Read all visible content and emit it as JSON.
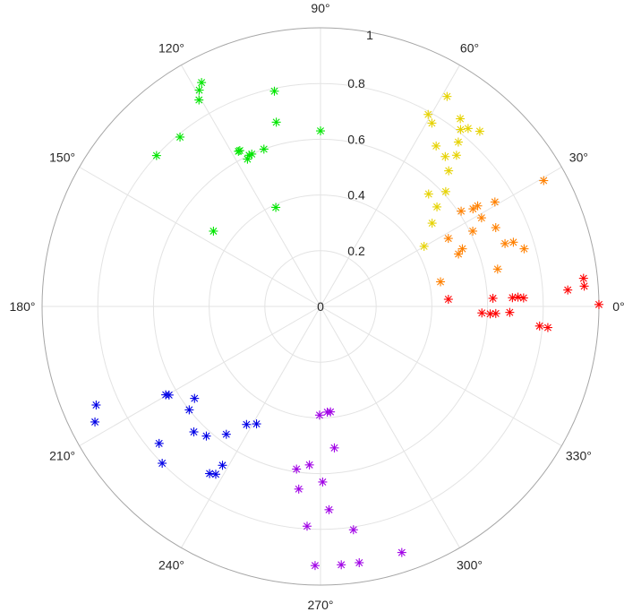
{
  "chart_data": {
    "type": "scatter",
    "coordinate_system": "polar",
    "title": "",
    "marker": "asterisk",
    "theta_unit": "degrees",
    "r_lim": [
      0,
      1
    ],
    "r_ticks": [
      0,
      0.2,
      0.4,
      0.6,
      0.8,
      1
    ],
    "r_tick_labels": [
      "0",
      "0.2",
      "0.4",
      "0.6",
      "0.8",
      "1"
    ],
    "theta_ticks": [
      0,
      30,
      60,
      90,
      120,
      150,
      180,
      210,
      240,
      270,
      300,
      330
    ],
    "theta_tick_labels": [
      "0°",
      "30°",
      "60°",
      "90°",
      "120°",
      "150°",
      "180°",
      "210°",
      "240°",
      "270°",
      "300°",
      "330°"
    ],
    "grid": true,
    "series": [
      {
        "color": "#ff0000",
        "points": [
          {
            "theta": 0.4,
            "r": 1.0
          },
          {
            "theta": 4.4,
            "r": 0.95
          },
          {
            "theta": 6.1,
            "r": 0.95
          },
          {
            "theta": 3.8,
            "r": 0.89
          },
          {
            "theta": -5.3,
            "r": 0.82
          },
          {
            "theta": -5.1,
            "r": 0.79
          },
          {
            "theta": 2.4,
            "r": 0.73
          },
          {
            "theta": 2.7,
            "r": 0.71
          },
          {
            "theta": 2.6,
            "r": 0.69
          },
          {
            "theta": -1.8,
            "r": 0.68
          },
          {
            "theta": 2.7,
            "r": 0.62
          },
          {
            "theta": -2.3,
            "r": 0.63
          },
          {
            "theta": -2.5,
            "r": 0.61
          },
          {
            "theta": -2.3,
            "r": 0.58
          },
          {
            "theta": 3.2,
            "r": 0.46
          }
        ]
      },
      {
        "color": "#ff8000",
        "points": [
          {
            "theta": 29.4,
            "r": 0.92
          },
          {
            "theta": 15.8,
            "r": 0.76
          },
          {
            "theta": 18.4,
            "r": 0.73
          },
          {
            "theta": 18.8,
            "r": 0.7
          },
          {
            "theta": 30.9,
            "r": 0.73
          },
          {
            "theta": 24.2,
            "r": 0.69
          },
          {
            "theta": 28.8,
            "r": 0.66
          },
          {
            "theta": 32.6,
            "r": 0.67
          },
          {
            "theta": 11.9,
            "r": 0.65
          },
          {
            "theta": 34.1,
            "r": 0.61
          },
          {
            "theta": 32.6,
            "r": 0.65
          },
          {
            "theta": 26.3,
            "r": 0.61
          },
          {
            "theta": 22.1,
            "r": 0.55
          },
          {
            "theta": 28.0,
            "r": 0.52
          },
          {
            "theta": 20.8,
            "r": 0.53
          },
          {
            "theta": 11.6,
            "r": 0.44
          }
        ]
      },
      {
        "color": "#e6d200",
        "points": [
          {
            "theta": 58.9,
            "r": 0.88
          },
          {
            "theta": 53.3,
            "r": 0.84
          },
          {
            "theta": 51.6,
            "r": 0.81
          },
          {
            "theta": 50.3,
            "r": 0.83
          },
          {
            "theta": 47.7,
            "r": 0.85
          },
          {
            "theta": 60.7,
            "r": 0.79
          },
          {
            "theta": 58.7,
            "r": 0.77
          },
          {
            "theta": 50.0,
            "r": 0.77
          },
          {
            "theta": 48.0,
            "r": 0.73
          },
          {
            "theta": 50.2,
            "r": 0.7
          },
          {
            "theta": 54.2,
            "r": 0.71
          },
          {
            "theta": 46.6,
            "r": 0.67
          },
          {
            "theta": 42.5,
            "r": 0.61
          },
          {
            "theta": 46.1,
            "r": 0.56
          },
          {
            "theta": 40.5,
            "r": 0.55
          },
          {
            "theta": 36.7,
            "r": 0.5
          },
          {
            "theta": 30.1,
            "r": 0.43
          }
        ]
      },
      {
        "color": "#00e600",
        "points": [
          {
            "theta": 90.0,
            "r": 0.63
          },
          {
            "theta": 102.1,
            "r": 0.79
          },
          {
            "theta": 103.5,
            "r": 0.68
          },
          {
            "theta": 109.8,
            "r": 0.6
          },
          {
            "theta": 114.3,
            "r": 0.6
          },
          {
            "theta": 115.3,
            "r": 0.6
          },
          {
            "theta": 116.4,
            "r": 0.59
          },
          {
            "theta": 117.4,
            "r": 0.63
          },
          {
            "theta": 117.9,
            "r": 0.63
          },
          {
            "theta": 118.0,
            "r": 0.91
          },
          {
            "theta": 119.3,
            "r": 0.89
          },
          {
            "theta": 120.5,
            "r": 0.86
          },
          {
            "theta": 129.7,
            "r": 0.79
          },
          {
            "theta": 137.4,
            "r": 0.8
          },
          {
            "theta": 114.3,
            "r": 0.39
          },
          {
            "theta": 144.9,
            "r": 0.47
          }
        ]
      },
      {
        "color": "#0000e6",
        "points": [
          {
            "theta": 207.1,
            "r": 0.91
          },
          {
            "theta": 203.7,
            "r": 0.88
          },
          {
            "theta": 209.7,
            "r": 0.64
          },
          {
            "theta": 210.3,
            "r": 0.63
          },
          {
            "theta": 216.1,
            "r": 0.56
          },
          {
            "theta": 218.2,
            "r": 0.6
          },
          {
            "theta": 224.7,
            "r": 0.64
          },
          {
            "theta": 228.6,
            "r": 0.62
          },
          {
            "theta": 233.6,
            "r": 0.57
          },
          {
            "theta": 237.9,
            "r": 0.5
          },
          {
            "theta": 220.3,
            "r": 0.76
          },
          {
            "theta": 224.7,
            "r": 0.8
          },
          {
            "theta": 236.4,
            "r": 0.72
          },
          {
            "theta": 238.0,
            "r": 0.71
          },
          {
            "theta": 238.3,
            "r": 0.67
          },
          {
            "theta": 241.4,
            "r": 0.48
          }
        ]
      },
      {
        "color": "#a000e6",
        "points": [
          {
            "theta": 269.5,
            "r": 0.39
          },
          {
            "theta": 273.7,
            "r": 0.38
          },
          {
            "theta": 275.4,
            "r": 0.38
          },
          {
            "theta": 275.6,
            "r": 0.51
          },
          {
            "theta": 261.6,
            "r": 0.59
          },
          {
            "theta": 266.0,
            "r": 0.57
          },
          {
            "theta": 270.7,
            "r": 0.63
          },
          {
            "theta": 263.2,
            "r": 0.66
          },
          {
            "theta": 272.4,
            "r": 0.73
          },
          {
            "theta": 266.5,
            "r": 0.79
          },
          {
            "theta": 278.4,
            "r": 0.81
          },
          {
            "theta": 268.8,
            "r": 0.93
          },
          {
            "theta": 274.6,
            "r": 0.93
          },
          {
            "theta": 278.6,
            "r": 0.93
          },
          {
            "theta": 288.3,
            "r": 0.93
          }
        ]
      }
    ]
  }
}
